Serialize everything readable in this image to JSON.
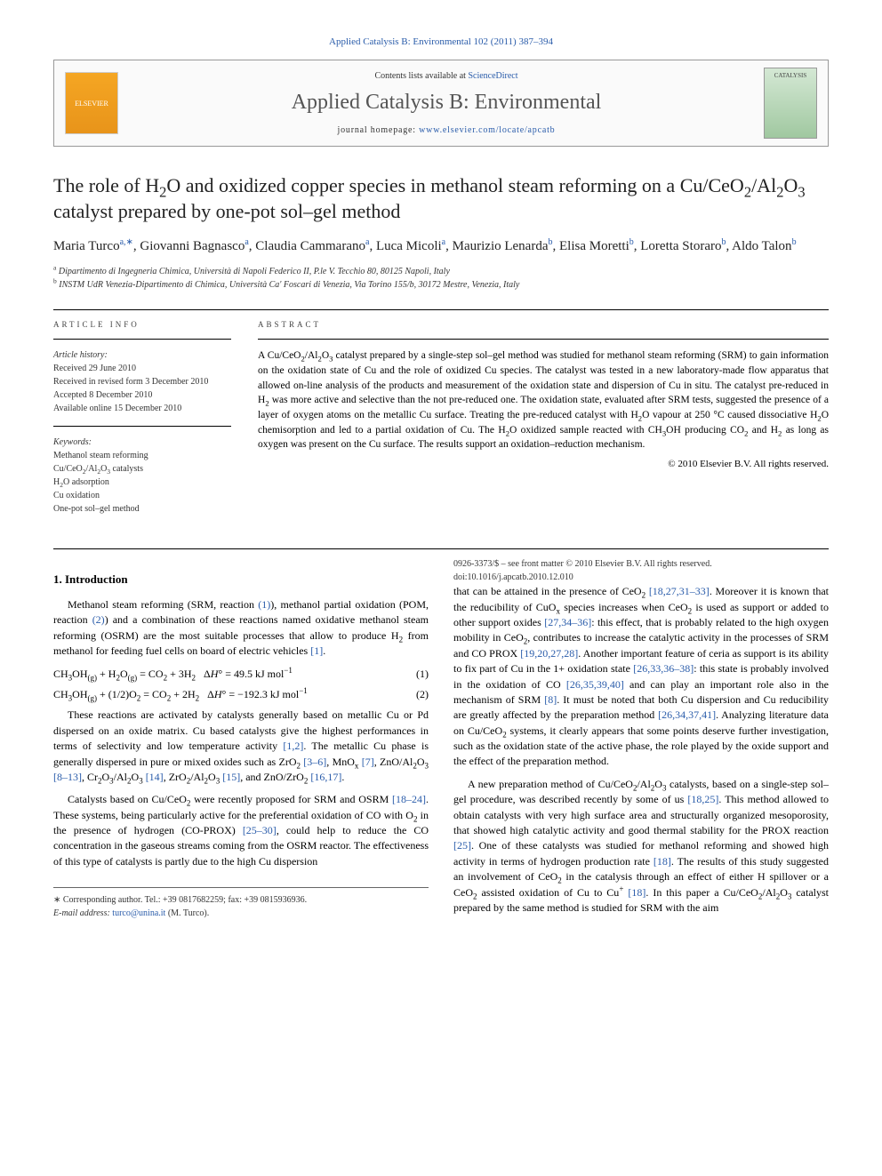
{
  "header": {
    "citation_link": "Applied Catalysis B: Environmental 102 (2011) 387–394",
    "contents_prefix": "Contents lists available at ",
    "contents_link": "ScienceDirect",
    "journal_name": "Applied Catalysis B: Environmental",
    "homepage_prefix": "journal homepage: ",
    "homepage_url": "www.elsevier.com/locate/apcatb",
    "elsevier_label": "ELSEVIER",
    "cover_label": "CATALYSIS"
  },
  "article": {
    "title_html": "The role of H<sub>2</sub>O and oxidized copper species in methanol steam reforming on a Cu/CeO<sub>2</sub>/Al<sub>2</sub>O<sub>3</sub> catalyst prepared by one-pot sol–gel method",
    "authors_html": "Maria Turco<sup>a,∗</sup>, Giovanni Bagnasco<sup>a</sup>, Claudia Cammarano<sup>a</sup>, Luca Micoli<sup>a</sup>, Maurizio Lenarda<sup>b</sup>, Elisa Moretti<sup>b</sup>, Loretta Storaro<sup>b</sup>, Aldo Talon<sup>b</sup>",
    "affiliations": [
      "<sup>a</sup> Dipartimento di Ingegneria Chimica, Università di Napoli Federico II, P.le V. Tecchio 80, 80125 Napoli, Italy",
      "<sup>b</sup> INSTM UdR Venezia-Dipartimento di Chimica, Università Ca' Foscari di Venezia, Via Torino 155/b, 30172 Mestre, Venezia, Italy"
    ]
  },
  "info": {
    "heading": "ARTICLE INFO",
    "history_label": "Article history:",
    "history_lines": [
      "Received 29 June 2010",
      "Received in revised form 3 December 2010",
      "Accepted 8 December 2010",
      "Available online 15 December 2010"
    ],
    "keywords_label": "Keywords:",
    "keywords_html": [
      "Methanol steam reforming",
      "Cu/CeO<sub>2</sub>/Al<sub>2</sub>O<sub>3</sub> catalysts",
      "H<sub>2</sub>O adsorption",
      "Cu oxidation",
      "One-pot sol–gel method"
    ]
  },
  "abstract": {
    "heading": "ABSTRACT",
    "text_html": "A Cu/CeO<sub>2</sub>/Al<sub>2</sub>O<sub>3</sub> catalyst prepared by a single-step sol–gel method was studied for methanol steam reforming (SRM) to gain information on the oxidation state of Cu and the role of oxidized Cu species. The catalyst was tested in a new laboratory-made flow apparatus that allowed on-line analysis of the products and measurement of the oxidation state and dispersion of Cu in situ. The catalyst pre-reduced in H<sub>2</sub> was more active and selective than the not pre-reduced one. The oxidation state, evaluated after SRM tests, suggested the presence of a layer of oxygen atoms on the metallic Cu surface. Treating the pre-reduced catalyst with H<sub>2</sub>O vapour at 250 °C caused dissociative H<sub>2</sub>O chemisorption and led to a partial oxidation of Cu. The H<sub>2</sub>O oxidized sample reacted with CH<sub>3</sub>OH producing CO<sub>2</sub> and H<sub>2</sub> as long as oxygen was present on the Cu surface. The results support an oxidation–reduction mechanism.",
    "copyright": "© 2010 Elsevier B.V. All rights reserved."
  },
  "body": {
    "section1_heading": "1. Introduction",
    "para1_html": "Methanol steam reforming (SRM, reaction <span class=\"ref-link\">(1)</span>), methanol partial oxidation (POM, reaction <span class=\"ref-link\">(2)</span>) and a combination of these reactions named oxidative methanol steam reforming (OSRM) are the most suitable processes that allow to produce H<sub>2</sub> from methanol for feeding fuel cells on board of electric vehicles <span class=\"ref-link\">[1]</span>.",
    "eq1_html": "CH<sub>3</sub>OH<sub>(g)</sub> + H<sub>2</sub>O<sub>(g)</sub> = CO<sub>2</sub> + 3H<sub>2</sub>&nbsp;&nbsp;&nbsp;Δ<i>H</i>° = 49.5 kJ mol<sup>−1</sup>",
    "eq1_num": "(1)",
    "eq2_html": "CH<sub>3</sub>OH<sub>(g)</sub> + (1/2)O<sub>2</sub> = CO<sub>2</sub> + 2H<sub>2</sub>&nbsp;&nbsp;&nbsp;Δ<i>H</i>° = −192.3 kJ mol<sup>−1</sup>",
    "eq2_num": "(2)",
    "para2_html": "These reactions are activated by catalysts generally based on metallic Cu or Pd dispersed on an oxide matrix. Cu based catalysts give the highest performances in terms of selectivity and low temperature activity <span class=\"ref-link\">[1,2]</span>. The metallic Cu phase is generally dispersed in pure or mixed oxides such as ZrO<sub>2</sub> <span class=\"ref-link\">[3–6]</span>, MnO<sub>x</sub> <span class=\"ref-link\">[7]</span>, ZnO/Al<sub>2</sub>O<sub>3</sub> <span class=\"ref-link\">[8–13]</span>, Cr<sub>2</sub>O<sub>3</sub>/Al<sub>2</sub>O<sub>3</sub> <span class=\"ref-link\">[14]</span>, ZrO<sub>2</sub>/Al<sub>2</sub>O<sub>3</sub> <span class=\"ref-link\">[15]</span>, and ZnO/ZrO<sub>2</sub> <span class=\"ref-link\">[16,17]</span>.",
    "para3_html": "Catalysts based on Cu/CeO<sub>2</sub> were recently proposed for SRM and OSRM <span class=\"ref-link\">[18–24]</span>. These systems, being particularly active for the preferential oxidation of CO with O<sub>2</sub> in the presence of hydrogen (CO-PROX) <span class=\"ref-link\">[25–30]</span>, could help to reduce the CO concentration in the gaseous streams coming from the OSRM reactor. The effectiveness of this type of catalysts is partly due to the high Cu dispersion",
    "para4_html": "that can be attained in the presence of CeO<sub>2</sub> <span class=\"ref-link\">[18,27,31–33]</span>. Moreover it is known that the reducibility of CuO<sub>x</sub> species increases when CeO<sub>2</sub> is used as support or added to other support oxides <span class=\"ref-link\">[27,34–36]</span>: this effect, that is probably related to the high oxygen mobility in CeO<sub>2</sub>, contributes to increase the catalytic activity in the processes of SRM and CO PROX <span class=\"ref-link\">[19,20,27,28]</span>. Another important feature of ceria as support is its ability to fix part of Cu in the 1+ oxidation state <span class=\"ref-link\">[26,33,36–38]</span>: this state is probably involved in the oxidation of CO <span class=\"ref-link\">[26,35,39,40]</span> and can play an important role also in the mechanism of SRM <span class=\"ref-link\">[8]</span>. It must be noted that both Cu dispersion and Cu reducibility are greatly affected by the preparation method <span class=\"ref-link\">[26,34,37,41]</span>. Analyzing literature data on Cu/CeO<sub>2</sub> systems, it clearly appears that some points deserve further investigation, such as the oxidation state of the active phase, the role played by the oxide support and the effect of the preparation method.",
    "para5_html": "A new preparation method of Cu/CeO<sub>2</sub>/Al<sub>2</sub>O<sub>3</sub> catalysts, based on a single-step sol–gel procedure, was described recently by some of us <span class=\"ref-link\">[18,25]</span>. This method allowed to obtain catalysts with very high surface area and structurally organized mesoporosity, that showed high catalytic activity and good thermal stability for the PROX reaction <span class=\"ref-link\">[25]</span>. One of these catalysts was studied for methanol reforming and showed high activity in terms of hydrogen production rate <span class=\"ref-link\">[18]</span>. The results of this study suggested an involvement of CeO<sub>2</sub> in the catalysis through an effect of either H spillover or a CeO<sub>2</sub> assisted oxidation of Cu to Cu<sup>+</sup> <span class=\"ref-link\">[18]</span>. In this paper a Cu/CeO<sub>2</sub>/Al<sub>2</sub>O<sub>3</sub> catalyst prepared by the same method is studied for SRM with the aim"
  },
  "footer": {
    "corresponding_html": "∗ Corresponding author. Tel.: +39 0817682259; fax: +39 0815936936.",
    "email_prefix": "E-mail address: ",
    "email": "turco@unina.it",
    "email_suffix": " (M. Turco).",
    "issn_line": "0926-3373/$ – see front matter © 2010 Elsevier B.V. All rights reserved.",
    "doi_line": "doi:10.1016/j.apcatb.2010.12.010"
  },
  "colors": {
    "link": "#2a5caa",
    "text": "#000000",
    "muted": "#333333",
    "border": "#999999"
  }
}
